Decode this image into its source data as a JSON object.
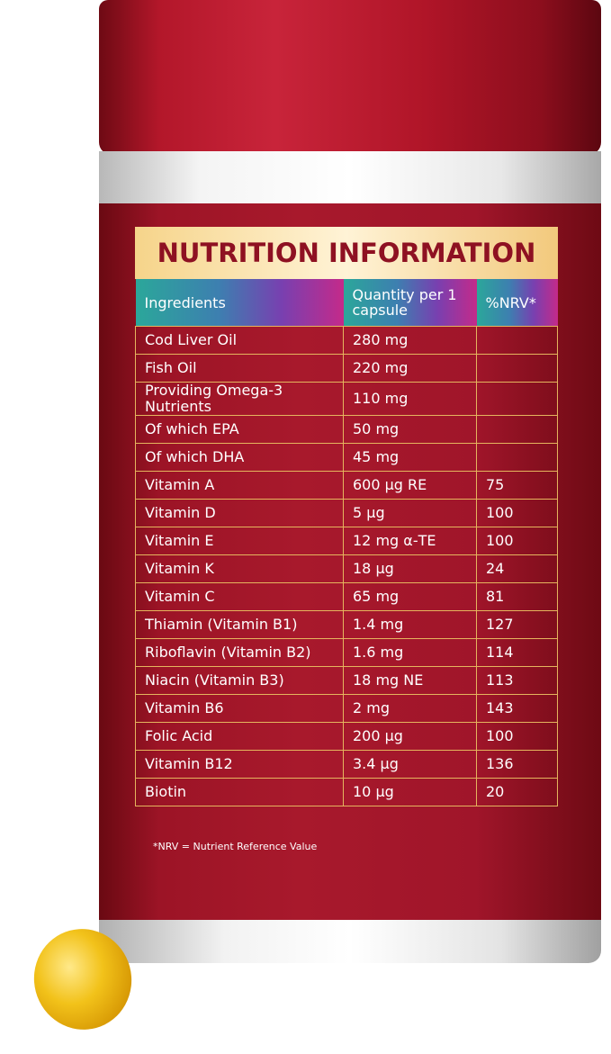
{
  "title": "NUTRITION INFORMATION",
  "table": {
    "header": [
      "Ingredients",
      "Quantity per 1 capsule",
      "%NRV*"
    ],
    "rows": [
      {
        "ingredient": "Cod Liver Oil",
        "quantity": "280 mg"
      },
      {
        "ingredient": "Fish Oil",
        "quantity": "220 mg"
      },
      {
        "ingredient": "Providing Omega-3 Nutrients",
        "quantity": "110 mg"
      },
      {
        "ingredient": "Of which EPA",
        "quantity": "50 mg"
      },
      {
        "ingredient": "Of which DHA",
        "quantity": "45 mg"
      },
      {
        "ingredient": "Vitamin A",
        "quantity": "600 µg RE",
        "nrv": 75
      },
      {
        "ingredient": "Vitamin D",
        "quantity": "5 µg",
        "nrv": 100
      },
      {
        "ingredient": "Vitamin E",
        "quantity": "12 mg α-TE",
        "nrv": 100
      },
      {
        "ingredient": "Vitamin K",
        "quantity": "18 µg",
        "nrv": 24
      },
      {
        "ingredient": "Vitamin C",
        "quantity": "65 mg",
        "nrv": 81
      },
      {
        "ingredient": "Thiamin (Vitamin B1)",
        "quantity": "1.4 mg",
        "nrv": 127
      },
      {
        "ingredient": "Riboflavin (Vitamin B2)",
        "quantity": "1.6 mg",
        "nrv": 114
      },
      {
        "ingredient": "Niacin (Vitamin B3)",
        "quantity": "18 mg NE",
        "nrv": 113
      },
      {
        "ingredient": "Vitamin B6",
        "quantity": "2 mg",
        "nrv": 143
      },
      {
        "ingredient": "Folic Acid",
        "quantity": "200 µg",
        "nrv": 100
      },
      {
        "ingredient": "Vitamin B12",
        "quantity": "3.4 µg",
        "nrv": 136
      },
      {
        "ingredient": "Biotin",
        "quantity": "10 µg",
        "nrv": 20
      }
    ]
  },
  "footnote": "*NRV = Nutrient Reference Value"
}
